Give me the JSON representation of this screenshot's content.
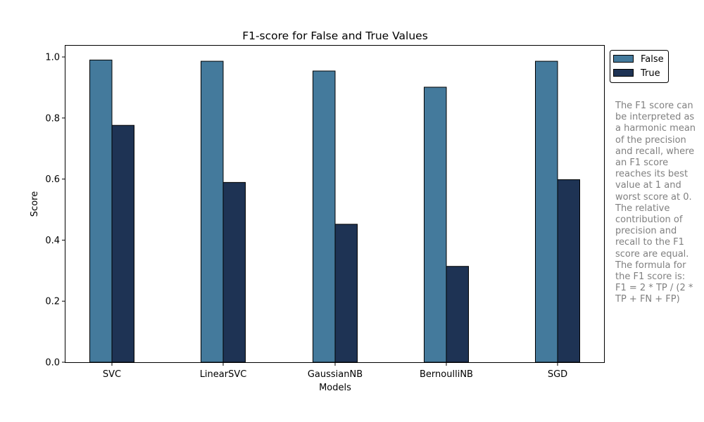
{
  "chart_data": {
    "type": "bar",
    "title": "F1-score for False and True Values",
    "xlabel": "Models",
    "ylabel": "Score",
    "ylim": [
      0,
      1.04
    ],
    "yticks": [
      "0.0",
      "0.2",
      "0.4",
      "0.6",
      "0.8",
      "1.0"
    ],
    "categories": [
      "SVC",
      "LinearSVC",
      "GaussianNB",
      "BernoulliNB",
      "SGD"
    ],
    "series": [
      {
        "name": "False",
        "color": "#447a9c",
        "values": [
          0.99,
          0.986,
          0.954,
          0.901,
          0.986
        ]
      },
      {
        "name": "True",
        "color": "#1e3354",
        "values": [
          0.776,
          0.589,
          0.452,
          0.314,
          0.598
        ]
      }
    ],
    "legend_position": "outside-top-right",
    "grid": false
  },
  "annotation": {
    "text": "The F1 score can\nbe interpreted as\na harmonic mean\nof the precision\nand recall, where\nan F1 score\nreaches its best\nvalue at 1 and\nworst score at 0.\nThe relative\ncontribution of\nprecision and\nrecall to the F1\nscore are equal.\nThe formula for\nthe F1 score is:\nF1 = 2 * TP / (2 *\nTP + FN + FP)"
  }
}
